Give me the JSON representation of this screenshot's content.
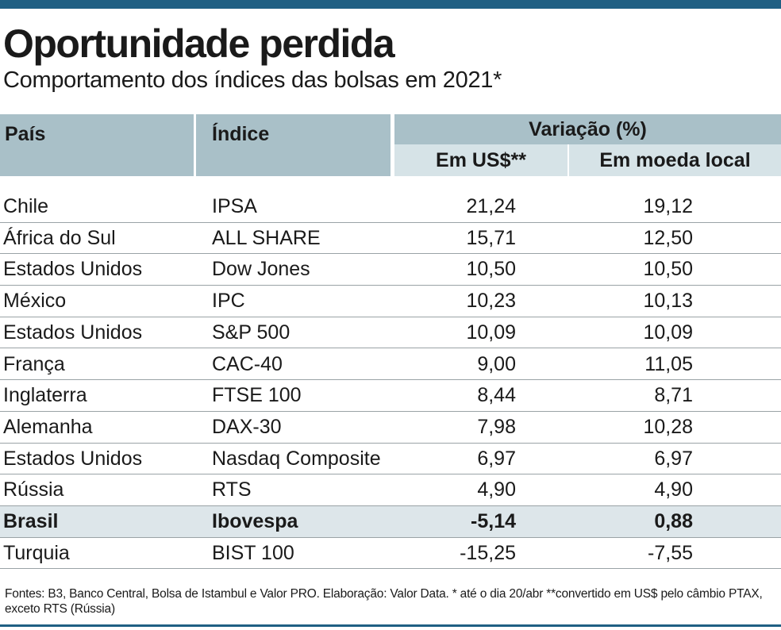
{
  "header": {
    "title": "Oportunidade perdida",
    "subtitle": "Comportamento dos índices das bolsas em 2021*"
  },
  "colors": {
    "accent_bar": "#1f5f83",
    "header_dark": "#a9c0c8",
    "header_light": "#d6e3e7",
    "highlight_row": "#dde6ea"
  },
  "chart_data": {
    "type": "table",
    "title": "Oportunidade perdida",
    "subtitle": "Comportamento dos índices das bolsas em 2021*",
    "columns": {
      "pais": "País",
      "indice": "Índice",
      "variacao": "Variação (%)",
      "em_usd": "Em US$**",
      "em_moeda_local": "Em moeda local"
    },
    "rows": [
      {
        "pais": "Chile",
        "indice": "IPSA",
        "usd": "21,24",
        "local": "19,12",
        "highlight": false
      },
      {
        "pais": "África do Sul",
        "indice": "ALL SHARE",
        "usd": "15,71",
        "local": "12,50",
        "highlight": false
      },
      {
        "pais": "Estados Unidos",
        "indice": "Dow Jones",
        "usd": "10,50",
        "local": "10,50",
        "highlight": false
      },
      {
        "pais": "México",
        "indice": "IPC",
        "usd": "10,23",
        "local": "10,13",
        "highlight": false
      },
      {
        "pais": "Estados Unidos",
        "indice": "S&P 500",
        "usd": "10,09",
        "local": "10,09",
        "highlight": false
      },
      {
        "pais": "França",
        "indice": "CAC-40",
        "usd": "9,00",
        "local": "11,05",
        "highlight": false
      },
      {
        "pais": "Inglaterra",
        "indice": "FTSE 100",
        "usd": "8,44",
        "local": "8,71",
        "highlight": false
      },
      {
        "pais": "Alemanha",
        "indice": "DAX-30",
        "usd": "7,98",
        "local": "10,28",
        "highlight": false
      },
      {
        "pais": "Estados Unidos",
        "indice": "Nasdaq Composite",
        "usd": "6,97",
        "local": "6,97",
        "highlight": false
      },
      {
        "pais": "Rússia",
        "indice": "RTS",
        "usd": "4,90",
        "local": "4,90",
        "highlight": false
      },
      {
        "pais": "Brasil",
        "indice": "Ibovespa",
        "usd": "-5,14",
        "local": "0,88",
        "highlight": true
      },
      {
        "pais": "Turquia",
        "indice": "BIST 100",
        "usd": "-15,25",
        "local": "-7,55",
        "highlight": false
      }
    ]
  },
  "footnote": "Fontes: B3, Banco Central, Bolsa de Istambul e Valor PRO. Elaboração: Valor Data. * até o dia 20/abr **convertido em US$ pelo câmbio PTAX, exceto RTS (Rússia)"
}
